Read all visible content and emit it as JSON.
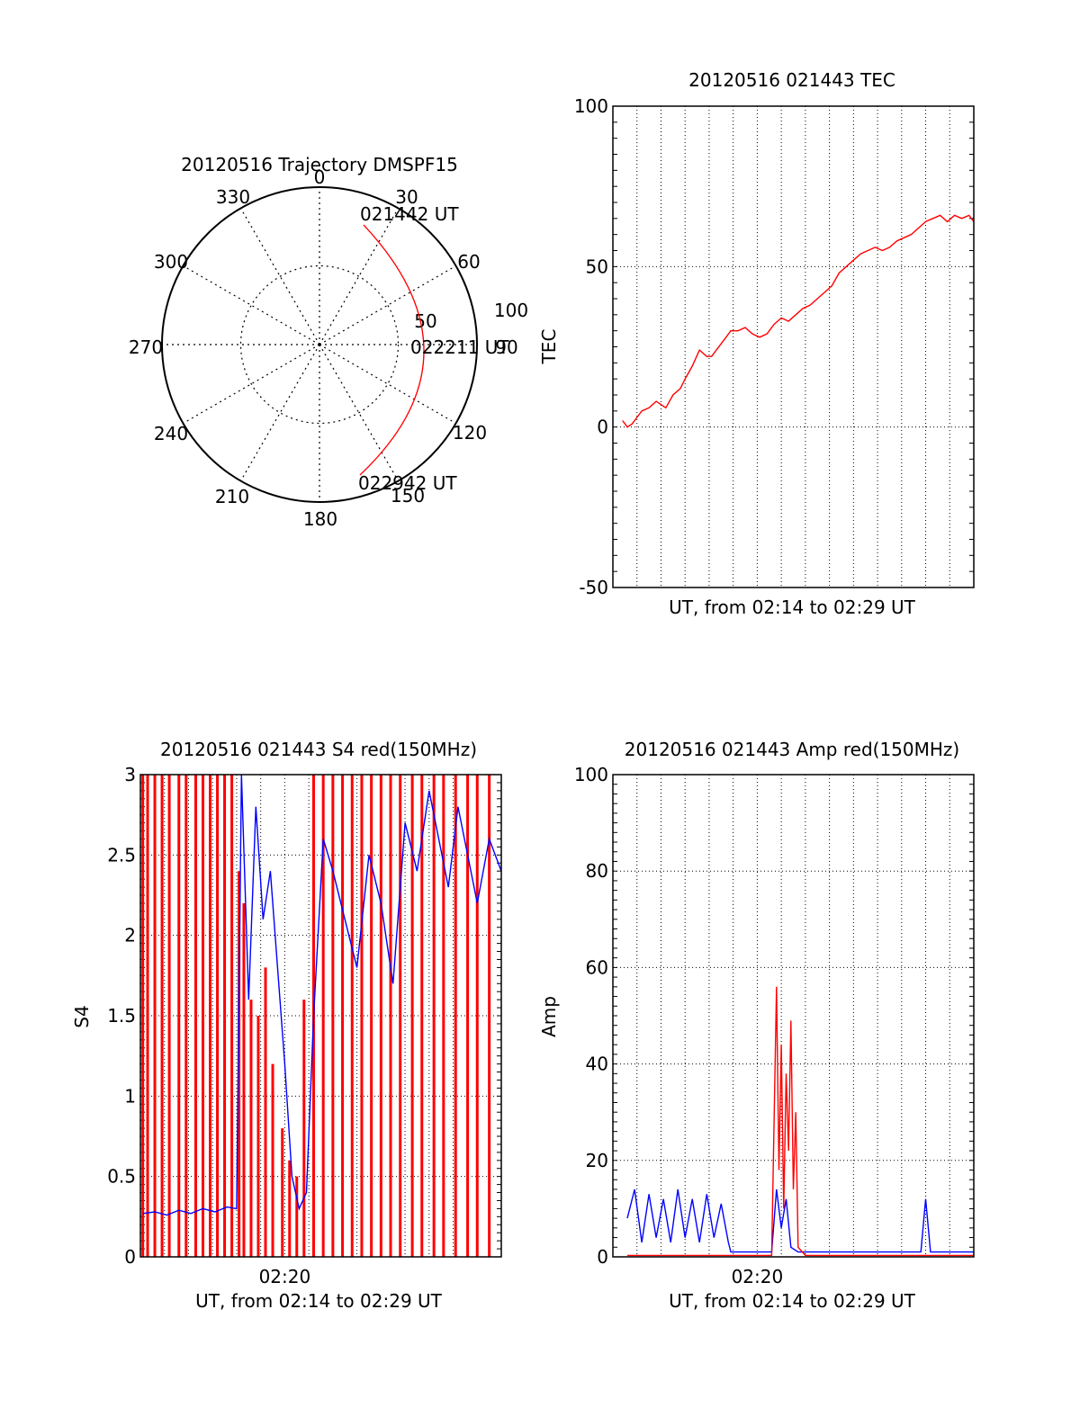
{
  "polar": {
    "title": "20120516 Trajectory DMSPF15",
    "azimuth_labels": [
      "0",
      "30",
      "60",
      "90",
      "120",
      "150",
      "180",
      "210",
      "240",
      "270",
      "300",
      "330"
    ],
    "radius_labels": [
      "50",
      "100"
    ],
    "start_label": "021442 UT",
    "mid_label": "022211 UT",
    "end_label": "022942 UT",
    "trace_color": "#ff0000"
  },
  "chart_data": [
    {
      "id": "tec",
      "type": "line",
      "title": "20120516 021443 TEC",
      "xlabel": "UT, from 02:14 to 02:29 UT",
      "ylabel": "TEC",
      "ylim": [
        -50,
        100
      ],
      "yticks": [
        "-50",
        "0",
        "50",
        "100"
      ],
      "xlim": [
        0,
        15
      ],
      "xticks": [],
      "grid": true,
      "series": [
        {
          "color": "#ff0000",
          "x": [
            0.4,
            0.5,
            0.6,
            0.8,
            1.0,
            1.2,
            1.5,
            1.8,
            2.0,
            2.2,
            2.5,
            2.8,
            3.0,
            3.3,
            3.6,
            3.9,
            4.1,
            4.3,
            4.6,
            4.9,
            5.2,
            5.5,
            5.8,
            6.1,
            6.4,
            6.7,
            7.0,
            7.3,
            7.6,
            7.9,
            8.2,
            8.5,
            8.8,
            9.1,
            9.4,
            9.7,
            10.0,
            10.3,
            10.6,
            10.9,
            11.2,
            11.5,
            11.8,
            12.1,
            12.4,
            12.7,
            13.0,
            13.3,
            13.6,
            13.9,
            14.2,
            14.5,
            14.8,
            15.0
          ],
          "y": [
            2,
            1,
            0,
            1,
            3,
            5,
            6,
            8,
            7,
            6,
            10,
            12,
            15,
            19,
            24,
            22,
            22,
            24,
            27,
            30,
            30,
            31,
            29,
            28,
            29,
            32,
            34,
            33,
            35,
            37,
            38,
            40,
            42,
            44,
            48,
            50,
            52,
            54,
            55,
            56,
            55,
            56,
            58,
            59,
            60,
            62,
            64,
            65,
            66,
            64,
            66,
            65,
            66,
            64
          ]
        }
      ]
    },
    {
      "id": "s4",
      "type": "line",
      "title": "20120516 021443 S4 red(150MHz)",
      "xlabel": "UT, from 02:14 to 02:29 UT",
      "ylabel": "S4",
      "ylim": [
        0,
        3
      ],
      "yticks": [
        "0",
        "0.5",
        "1",
        "1.5",
        "2",
        "2.5",
        "3"
      ],
      "xlim": [
        0,
        15
      ],
      "xticks": [
        "02:20"
      ],
      "xtick_values": [
        6
      ],
      "grid": true,
      "series": [
        {
          "name": "",
          "color": "#ff0000",
          "x": [
            0.1,
            0.3,
            0.6,
            0.9,
            1.2,
            1.6,
            1.9,
            2.3,
            2.6,
            2.9,
            3.2,
            3.5,
            3.8,
            4.1,
            4.3,
            4.6,
            4.9,
            5.2,
            5.5,
            5.9,
            6.2,
            6.5,
            6.8,
            7.2,
            7.6,
            8.0,
            8.4,
            8.8,
            9.2,
            9.6,
            10.0,
            10.4,
            10.8,
            11.3,
            11.7,
            12.2,
            12.6,
            13.1,
            13.6,
            14.0,
            14.5
          ],
          "y": [
            3.0,
            3.0,
            3.0,
            3.0,
            3.0,
            3.0,
            3.0,
            3.0,
            3.0,
            3.0,
            3.0,
            3.0,
            3.0,
            2.4,
            2.2,
            1.6,
            1.5,
            1.8,
            1.2,
            0.8,
            0.6,
            0.5,
            1.6,
            3.0,
            3.0,
            3.0,
            3.0,
            3.0,
            3.0,
            3.0,
            3.0,
            3.0,
            3.0,
            3.0,
            3.0,
            3.0,
            3.0,
            3.0,
            3.0,
            3.0,
            3.0
          ]
        },
        {
          "name": "",
          "color": "#0000ff",
          "x": [
            0.1,
            0.6,
            1.1,
            1.6,
            2.1,
            2.6,
            3.1,
            3.6,
            4.0,
            4.2,
            4.5,
            4.8,
            5.1,
            5.4,
            5.7,
            6.0,
            6.3,
            6.6,
            6.9,
            7.2,
            7.6,
            8.0,
            8.5,
            9.0,
            9.5,
            10.0,
            10.5,
            11.0,
            11.5,
            12.0,
            12.4,
            12.8,
            13.2,
            13.6,
            14.0,
            14.5,
            15.0
          ],
          "y": [
            0.27,
            0.28,
            0.26,
            0.29,
            0.27,
            0.3,
            0.28,
            0.31,
            0.3,
            3.0,
            1.6,
            2.8,
            2.1,
            2.4,
            1.8,
            1.2,
            0.5,
            0.3,
            0.4,
            1.5,
            2.6,
            2.4,
            2.1,
            1.8,
            2.5,
            2.2,
            1.7,
            2.7,
            2.4,
            2.9,
            2.6,
            2.3,
            2.8,
            2.5,
            2.2,
            2.6,
            2.4
          ]
        }
      ]
    },
    {
      "id": "amp",
      "type": "line",
      "title": "20120516 021443 Amp red(150MHz)",
      "xlabel": "UT, from 02:14 to 02:29 UT",
      "ylabel": "Amp",
      "ylim": [
        0,
        100
      ],
      "yticks": [
        "0",
        "20",
        "40",
        "60",
        "80",
        "100"
      ],
      "xlim": [
        0,
        15
      ],
      "xticks": [
        "02:20"
      ],
      "xtick_values": [
        6
      ],
      "grid": true,
      "series": [
        {
          "name": "",
          "color": "#0000ff",
          "x": [
            0.6,
            0.9,
            1.2,
            1.5,
            1.8,
            2.1,
            2.4,
            2.7,
            3.0,
            3.3,
            3.6,
            3.9,
            4.2,
            4.5,
            4.8,
            4.9,
            5.2,
            5.6,
            6.0,
            6.4,
            6.6,
            6.8,
            7.0,
            7.2,
            7.4,
            7.7,
            8.0,
            9.0,
            10.0,
            11.0,
            12.0,
            12.8,
            13.0,
            13.2,
            13.6,
            14.2,
            15.0
          ],
          "y": [
            8,
            14,
            3,
            13,
            4,
            12,
            3,
            14,
            4,
            12,
            3,
            13,
            4,
            11,
            3,
            1,
            1,
            1,
            1,
            1,
            1,
            14,
            6,
            12,
            2,
            1,
            1,
            1,
            1,
            1,
            1,
            1,
            12,
            1,
            1,
            1,
            1
          ]
        },
        {
          "name": "",
          "color": "#ff0000",
          "x": [
            0.6,
            2.0,
            4.0,
            6.6,
            6.8,
            6.9,
            7.0,
            7.1,
            7.2,
            7.3,
            7.4,
            7.5,
            7.6,
            7.7,
            8.0,
            10.0,
            12.0,
            15.0
          ],
          "y": [
            0.3,
            0.3,
            0.3,
            0.3,
            56,
            18,
            44,
            10,
            38,
            22,
            49,
            14,
            30,
            2,
            0.3,
            0.3,
            0.3,
            0.3
          ]
        }
      ]
    }
  ]
}
